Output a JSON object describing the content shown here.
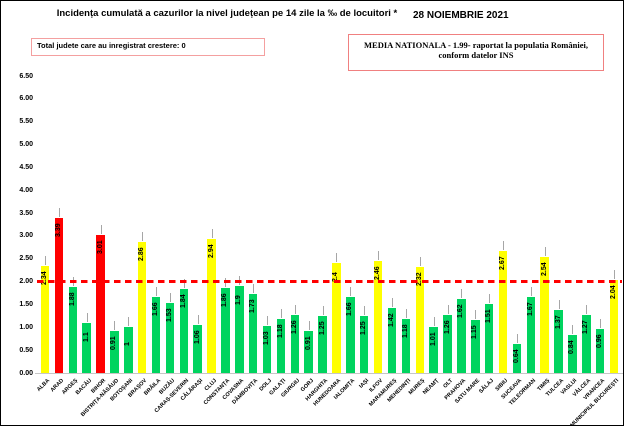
{
  "header": {
    "title": "Incidența cumulată a cazurilor la nivel județean pe 14 zile la ‰ de locuitori *",
    "date": "28 NOIEMBRIE 2021",
    "growth_box_label": "Total judete care au inregistrat crestere: 0",
    "national_average_line1": "MEDIA NATIONALA - 1.99-  raportat la populatia  României,",
    "national_average_line2": "conform datelor INS"
  },
  "chart_data": {
    "type": "bar",
    "title": "Incidența cumulată a cazurilor la nivel județean pe 14 zile la ‰ de locuitori *",
    "xlabel": "",
    "ylabel": "",
    "ylim": [
      0,
      6.5
    ],
    "grid": false,
    "legend": false,
    "yticks": [
      0,
      0.5,
      1,
      1.5,
      2,
      2.5,
      3,
      3.5,
      4,
      4.5,
      5,
      5.5,
      6,
      6.5
    ],
    "ytick_labels": [
      "0.00",
      "0.50",
      "1.00",
      "1.50",
      "2.00",
      "2.50",
      "3.00",
      "3.50",
      "4.00",
      "4.50",
      "5.00",
      "5.50",
      "6.00",
      "6.50"
    ],
    "reference_line": {
      "value": 2.0,
      "color": "#ff0000",
      "style": "dashed"
    },
    "categories": [
      "ALBA",
      "ARAD",
      "ARGEȘ",
      "BACĂU",
      "BIHOR",
      "BISTRIȚA-NĂSĂUD",
      "BOTOȘANI",
      "BRAȘOV",
      "BRĂILA",
      "BUZĂU",
      "CARAȘ-SEVERIN",
      "CĂLĂRAȘI",
      "CLUJ",
      "CONSTANȚA",
      "COVASNA",
      "DÂMBOVIȚA",
      "DOLJ",
      "GALAȚI",
      "GIURGIU",
      "GORJ",
      "HARGHITA",
      "HUNEDOARA",
      "IALOMIȚA",
      "IAȘI",
      "ILFOV",
      "MARAMUREȘ",
      "MEHEDINȚI",
      "MUREȘ",
      "NEAMȚ",
      "OLT",
      "PRAHOVA",
      "SATU MARE",
      "SĂLAJ",
      "SIBIU",
      "SUCEAVA",
      "TELEORMAN",
      "TIMIȘ",
      "TULCEA",
      "VASLUI",
      "VÂLCEA",
      "VRANCEA",
      "MUNICIPIUL BUCUREȘTI"
    ],
    "values": [
      2.34,
      3.39,
      1.88,
      1.1,
      3.01,
      0.91,
      1,
      2.86,
      1.66,
      1.53,
      1.84,
      1.06,
      2.94,
      1.86,
      1.9,
      1.73,
      1.03,
      1.18,
      1.26,
      0.91,
      1.25,
      2.4,
      1.66,
      1.25,
      2.46,
      1.42,
      1.18,
      2.32,
      1.01,
      1.26,
      1.62,
      1.15,
      1.51,
      2.67,
      0.64,
      1.67,
      2.54,
      1.37,
      0.84,
      1.27,
      0.96,
      2.04
    ],
    "value_labels": [
      "2.34",
      "3.39",
      "1.88",
      "1.1",
      "3.01",
      "0.91",
      "1",
      "2.86",
      "1.66",
      "1.53",
      "1.84",
      "1.06",
      "2.94",
      "1.86",
      "1.9",
      "1.73",
      "1.03",
      "1.18",
      "1.26",
      "0.91",
      "1.25",
      "2.4",
      "1.66",
      "1.25",
      "2.46",
      "1.42",
      "1.18",
      "2.32",
      "1.01",
      "1.26",
      "1.62",
      "1.15",
      "1.51",
      "2.67",
      "0.64",
      "1.67",
      "2.54",
      "1.37",
      "0.84",
      "1.27",
      "0.96",
      "2.04"
    ],
    "bar_colors": [
      "yellow",
      "red",
      "green",
      "green",
      "red",
      "green",
      "green",
      "yellow",
      "green",
      "green",
      "green",
      "green",
      "yellow",
      "green",
      "green",
      "green",
      "green",
      "green",
      "green",
      "green",
      "green",
      "yellow",
      "green",
      "green",
      "yellow",
      "green",
      "green",
      "yellow",
      "green",
      "green",
      "green",
      "green",
      "green",
      "yellow",
      "green",
      "green",
      "yellow",
      "green",
      "green",
      "green",
      "green",
      "yellow"
    ],
    "palette": {
      "green": "#00d45f",
      "yellow": "#ffff00",
      "red": "#ff0000"
    }
  }
}
